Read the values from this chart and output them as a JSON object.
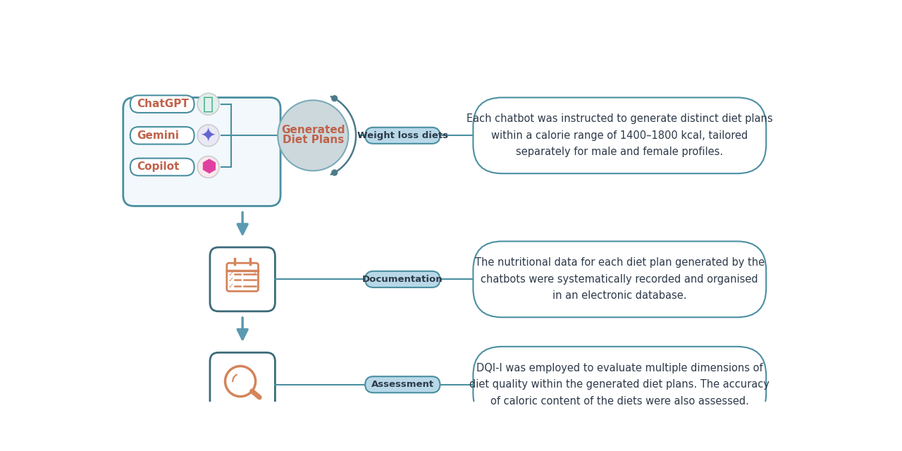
{
  "bg_color": "#ffffff",
  "teal_dark": "#2d6e7e",
  "teal_mid": "#4a8fa0",
  "teal_light": "#a8cdd8",
  "teal_fill": "#d6eaf0",
  "orange": "#d4845a",
  "chatgpt_color": "#c0624a",
  "gray_fill": "#cfd8dc",
  "label_fill": "#b8d8e8",
  "row1_label": "Weight loss diets",
  "row1_desc": "Each chatbot was instructed to generate distinct diet plans\nwithin a calorie range of 1400–1800 kcal, tailored\nseparately for male and female profiles.",
  "row2_label": "Documentation",
  "row2_desc": "The nutritional data for each diet plan generated by the\nchatbots were systematically recorded and organised\nin an electronic database.",
  "row3_label": "Assessment",
  "row3_desc": "DQI-I was employed to evaluate multiple dimensions of\ndiet quality within the generated diet plans. The accuracy\nof caloric content of the diets were also assessed.",
  "chatbot_names": [
    "ChatGPT",
    "Gemini",
    "Copilot"
  ],
  "center_label": "Generated\nDiet Plans"
}
